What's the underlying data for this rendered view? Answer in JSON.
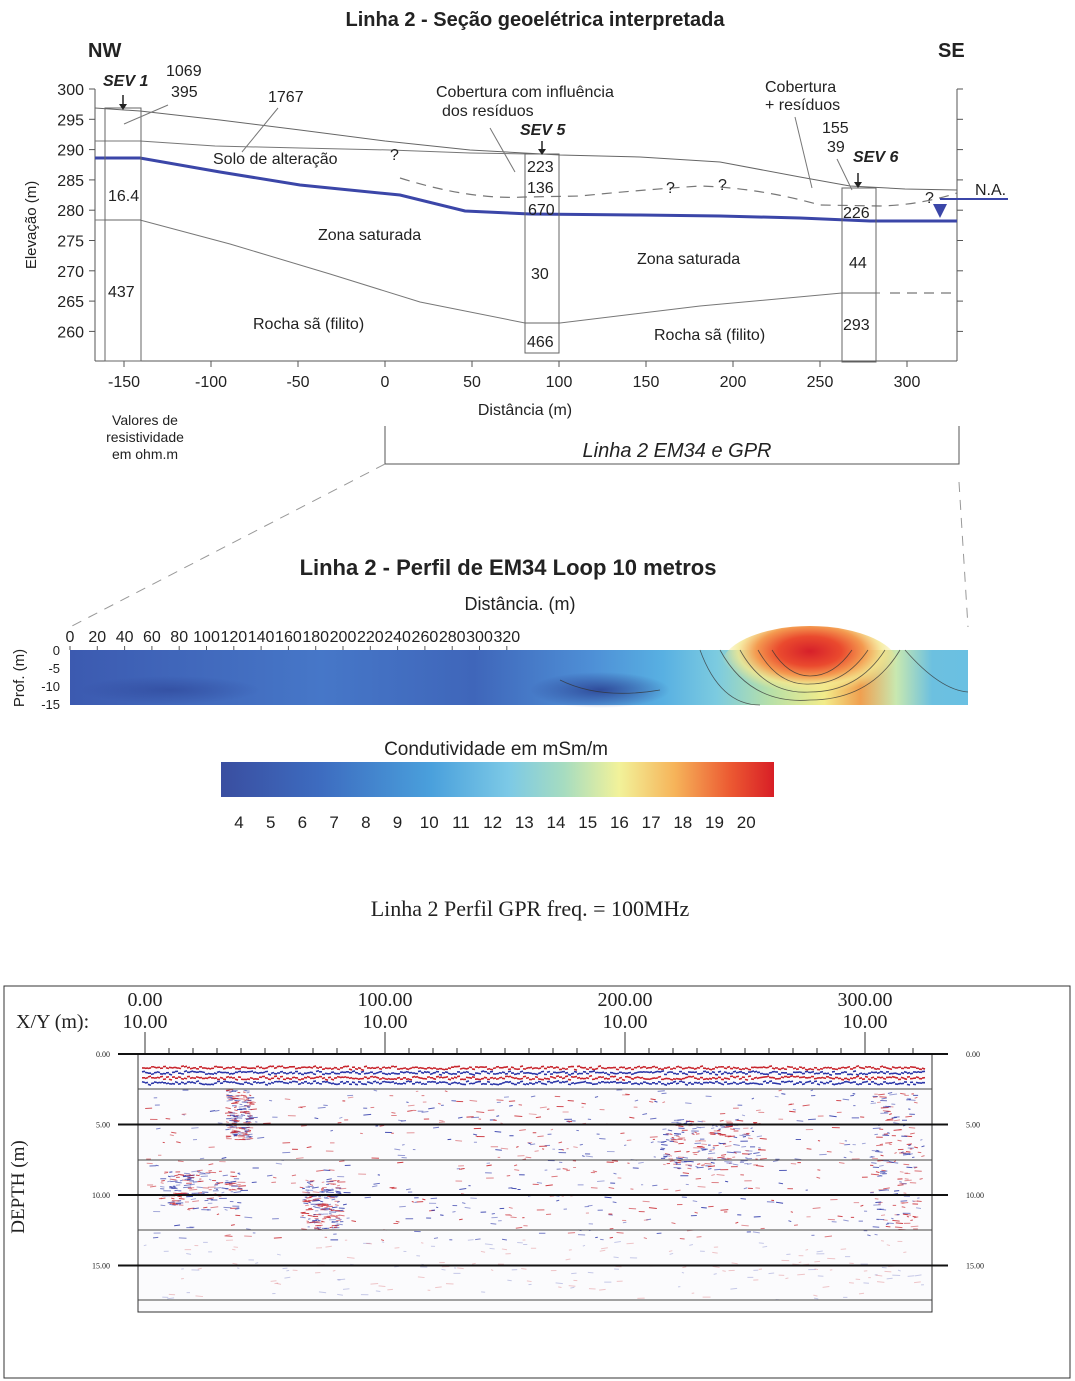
{
  "section": {
    "title": "Linha 2 - Seção geoelétrica interpretada",
    "nw": "NW",
    "se": "SE",
    "ylabel": "Elevação (m)",
    "xlabel": "Distância (m)",
    "y_ticks": [
      "300",
      "295",
      "290",
      "285",
      "280",
      "275",
      "270",
      "265",
      "260"
    ],
    "x_ticks": [
      "-150",
      "-100",
      "-50",
      "0",
      "50",
      "100",
      "150",
      "200",
      "250",
      "300"
    ],
    "sev1": {
      "label": "SEV 1",
      "values": [
        "1069",
        "395",
        "16.4",
        "437"
      ]
    },
    "sev5": {
      "label": "SEV 5",
      "values": [
        "223",
        "136",
        "670",
        "30",
        "466"
      ]
    },
    "sev6": {
      "label": "SEV 6",
      "values": [
        "155",
        "39",
        "226",
        "44",
        "293"
      ]
    },
    "value_1767": "1767",
    "q1": "?",
    "q2": "?",
    "q3": "?",
    "q4": "?",
    "labels": {
      "solo": "Solo de alteração",
      "cobertura_a": "Cobertura com influência",
      "cobertura_b": "dos resíduos",
      "cobertura2_a": "Cobertura",
      "cobertura2_b": "+ resíduos",
      "na": "N.A.",
      "zona1": "Zona saturada",
      "zona2": "Zona saturada",
      "rocha1": "Rocha sã (filito)",
      "rocha2": "Rocha sã (filito)"
    },
    "valores": [
      "Valores de",
      "resistividade",
      "em ohm.m"
    ],
    "linha2_em34_gpr": "Linha 2 EM34 e GPR"
  },
  "em34": {
    "title": "Linha 2 - Perfil de EM34 Loop 10 metros",
    "xlabel": "Distância. (m)",
    "ylabel": "Prof. (m)",
    "x_ticks": [
      "0",
      "20",
      "40",
      "60",
      "80",
      "100",
      "120",
      "140",
      "160",
      "180",
      "200",
      "220",
      "240",
      "260",
      "280",
      "300",
      "320"
    ],
    "y_ticks": [
      "0",
      "-5",
      "-10",
      "-15"
    ],
    "colorbar_title": "Condutividade em mSm/m",
    "colorbar_ticks": [
      "4",
      "5",
      "6",
      "7",
      "8",
      "9",
      "10",
      "11",
      "12",
      "13",
      "14",
      "15",
      "16",
      "17",
      "18",
      "19",
      "20"
    ]
  },
  "gpr": {
    "title": "Linha 2  Perfil GPR freq. = 100MHz",
    "xy_label": "X/Y (m):",
    "x_ticks": [
      {
        "x": "0.00",
        "y": "10.00"
      },
      {
        "x": "100.00",
        "y": "10.00"
      },
      {
        "x": "200.00",
        "y": "10.00"
      },
      {
        "x": "300.00",
        "y": "10.00"
      }
    ],
    "ylabel": "DEPTH (m)",
    "depth_ticks": [
      "0.00",
      "5.00",
      "10.00",
      "15.00"
    ]
  }
}
